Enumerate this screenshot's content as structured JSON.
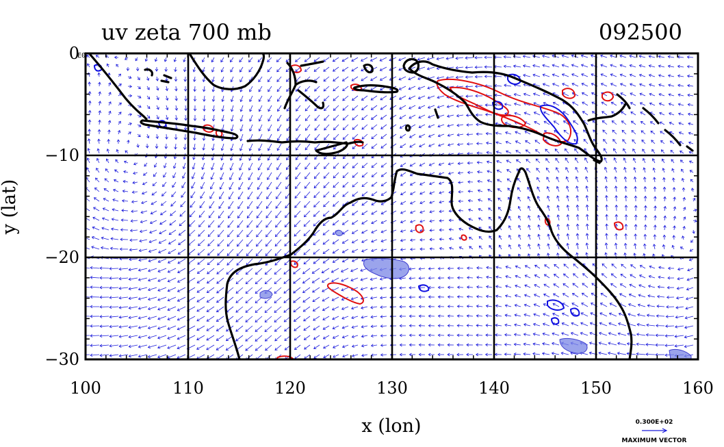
{
  "figure": {
    "title": "uv zeta 700 mb",
    "timestamp": "092500",
    "xlabel": "x (lon)",
    "ylabel": "y (lat)",
    "corner_label": "E0",
    "legend": {
      "value": "0.300E+02",
      "caption": "MAXIMUM VECTOR"
    }
  },
  "chart_data": {
    "type": "map",
    "title": "uv zeta 700 mb",
    "xlabel": "x (lon)",
    "ylabel": "y (lat)",
    "xlim": [
      100,
      160
    ],
    "ylim": [
      -30,
      0
    ],
    "x_ticks": [
      "100",
      "110",
      "120",
      "130",
      "140",
      "150",
      "160"
    ],
    "y_ticks": [
      "0",
      "−10",
      "−20",
      "−30"
    ],
    "grid": true,
    "layers": [
      "wind vectors",
      "relative vorticity contours",
      "coastlines"
    ],
    "colors": {
      "vectors": "#1a1adb",
      "positive_vorticity": "#e01010",
      "negative_vorticity_fill": "#7a86e6",
      "coastline": "#000000"
    }
  }
}
